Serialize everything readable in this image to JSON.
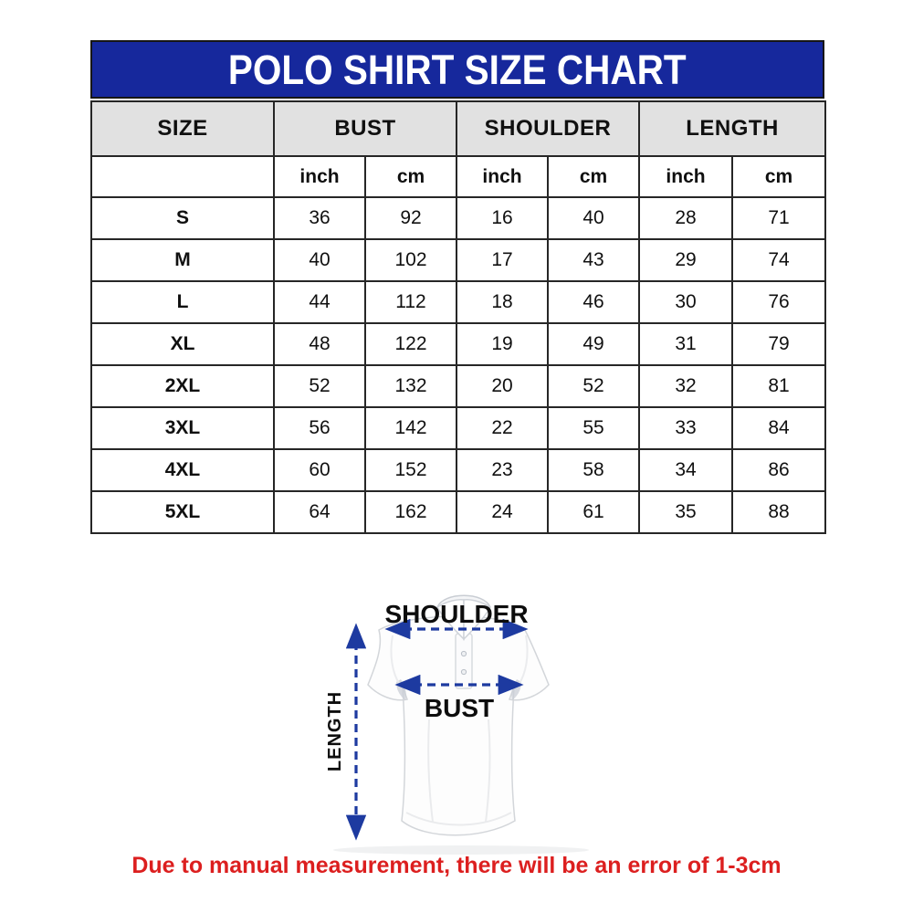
{
  "title": "POLO SHIRT SIZE CHART",
  "table": {
    "group_headers": [
      "SIZE",
      "BUST",
      "SHOULDER",
      "LENGTH"
    ],
    "unit_headers": [
      "inch",
      "cm",
      "inch",
      "cm",
      "inch",
      "cm"
    ],
    "rows": [
      {
        "size": "S",
        "values": [
          36,
          92,
          16,
          40,
          28,
          71
        ]
      },
      {
        "size": "M",
        "values": [
          40,
          102,
          17,
          43,
          29,
          74
        ]
      },
      {
        "size": "L",
        "values": [
          44,
          112,
          18,
          46,
          30,
          76
        ]
      },
      {
        "size": "XL",
        "values": [
          48,
          122,
          19,
          49,
          31,
          79
        ]
      },
      {
        "size": "2XL",
        "values": [
          52,
          132,
          20,
          52,
          32,
          81
        ]
      },
      {
        "size": "3XL",
        "values": [
          56,
          142,
          22,
          55,
          33,
          84
        ]
      },
      {
        "size": "4XL",
        "values": [
          60,
          152,
          23,
          58,
          34,
          86
        ]
      },
      {
        "size": "5XL",
        "values": [
          64,
          162,
          24,
          61,
          35,
          88
        ]
      }
    ]
  },
  "diagram": {
    "shoulder_label": "SHOULDER",
    "bust_label": "BUST",
    "length_label": "LENGTH"
  },
  "footnote": "Due to manual measurement, there will be an error of 1-3cm",
  "colors": {
    "header_blue": "#16289c",
    "header_gray": "#e1e1e1",
    "table_border": "#262626",
    "footnote_red": "#dc1f1f",
    "arrow_navy": "#1d3aa0",
    "title_text": "#ffffff"
  },
  "chart_data": {
    "type": "table",
    "title": "POLO SHIRT SIZE CHART",
    "columns": [
      "SIZE",
      "BUST inch",
      "BUST cm",
      "SHOULDER inch",
      "SHOULDER cm",
      "LENGTH inch",
      "LENGTH cm"
    ],
    "rows": [
      [
        "S",
        36,
        92,
        16,
        40,
        28,
        71
      ],
      [
        "M",
        40,
        102,
        17,
        43,
        29,
        74
      ],
      [
        "L",
        44,
        112,
        18,
        46,
        30,
        76
      ],
      [
        "XL",
        48,
        122,
        19,
        49,
        31,
        79
      ],
      [
        "2XL",
        52,
        132,
        20,
        52,
        32,
        81
      ],
      [
        "3XL",
        56,
        142,
        22,
        55,
        33,
        84
      ],
      [
        "4XL",
        60,
        152,
        23,
        58,
        34,
        86
      ],
      [
        "5XL",
        64,
        162,
        24,
        61,
        35,
        88
      ]
    ],
    "footnote": "Due to manual measurement, there will be an error of 1-3cm"
  }
}
